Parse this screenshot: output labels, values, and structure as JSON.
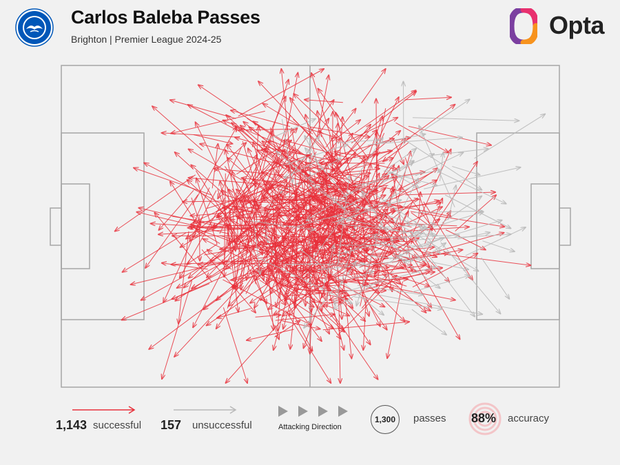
{
  "header": {
    "title": "Carlos Baleba Passes",
    "subtitle": "Brighton | Premier League 2024-25",
    "brand": "Opta",
    "club_badge_text": "BRIGHTON & HOVE ALBION"
  },
  "legend": {
    "successful_count": "1,143",
    "successful_label": "successful",
    "unsuccessful_count": "157",
    "unsuccessful_label": "unsuccessful",
    "attacking_direction_label": "Attacking Direction",
    "passes_total": "1,300",
    "passes_label": "passes",
    "accuracy_value": "88%",
    "accuracy_label": "accuracy"
  },
  "colors": {
    "successful": "#e8303a",
    "unsuccessful": "#b9b9b9",
    "pitch_lines": "#a6a6a6",
    "background": "#f1f1f1",
    "badge_blue": "#0057b8",
    "opta_orange": "#f7931e",
    "opta_pink": "#e8306e",
    "opta_purple": "#7b3fa0"
  },
  "chart_data": {
    "type": "pass-map",
    "attacking_direction": "left-to-right",
    "series": [
      {
        "name": "successful",
        "count": 1143
      },
      {
        "name": "unsuccessful",
        "count": 157
      }
    ],
    "total_passes": 1300,
    "accuracy_pct": 88
  }
}
